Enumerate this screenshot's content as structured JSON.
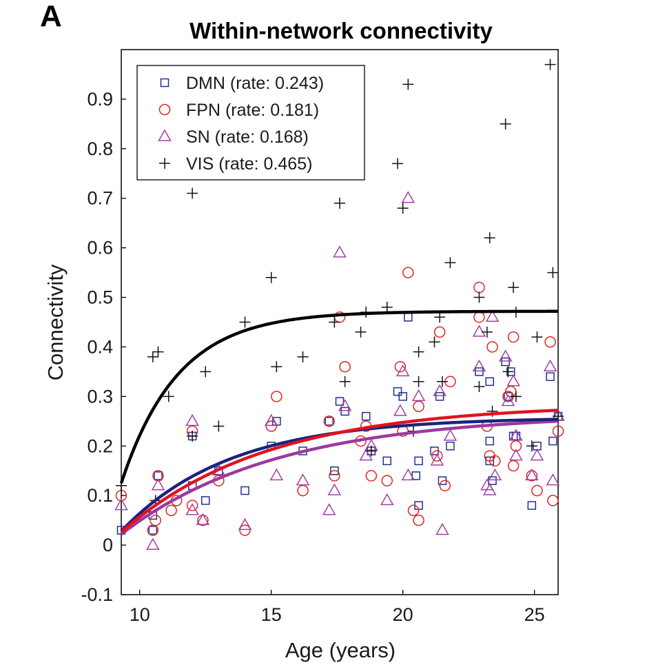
{
  "panel_label": "A",
  "chart_data": {
    "type": "scatter",
    "title": "Within-network connectivity",
    "xlabel": "Age (years)",
    "ylabel": "Connectivity",
    "xlim": [
      9.3,
      25.9
    ],
    "ylim": [
      -0.1,
      1.0
    ],
    "xticks": [
      10,
      15,
      20,
      25
    ],
    "yticks": [
      -0.1,
      0,
      0.1,
      0.2,
      0.3,
      0.4,
      0.5,
      0.6,
      0.7,
      0.8,
      0.9
    ],
    "grid": false,
    "legend_position": "top-left",
    "series": [
      {
        "name": "DMN",
        "legend_label": "DMN  (rate: 0.243)",
        "rate": 0.243,
        "marker": "square",
        "color": "#1f2f8f",
        "fit_color": "#1a237e",
        "fit": {
          "start": 0.028,
          "asymptote": 0.258
        },
        "points": [
          [
            9.3,
            0.03
          ],
          [
            10.5,
            0.03
          ],
          [
            10.5,
            0.06
          ],
          [
            10.7,
            0.14
          ],
          [
            12.0,
            0.22
          ],
          [
            12.0,
            0.12
          ],
          [
            12.5,
            0.09
          ],
          [
            13.0,
            0.15
          ],
          [
            14.0,
            0.11
          ],
          [
            15.0,
            0.2
          ],
          [
            15.2,
            0.25
          ],
          [
            16.2,
            0.19
          ],
          [
            17.2,
            0.25
          ],
          [
            17.4,
            0.15
          ],
          [
            17.6,
            0.29
          ],
          [
            17.8,
            0.27
          ],
          [
            18.6,
            0.26
          ],
          [
            18.8,
            0.19
          ],
          [
            19.4,
            0.17
          ],
          [
            19.8,
            0.31
          ],
          [
            20.0,
            0.3
          ],
          [
            20.2,
            0.46
          ],
          [
            20.5,
            0.14
          ],
          [
            20.6,
            0.08
          ],
          [
            20.6,
            0.17
          ],
          [
            21.2,
            0.19
          ],
          [
            21.4,
            0.3
          ],
          [
            21.5,
            0.13
          ],
          [
            21.8,
            0.2
          ],
          [
            22.9,
            0.35
          ],
          [
            23.3,
            0.33
          ],
          [
            23.3,
            0.21
          ],
          [
            23.3,
            0.17
          ],
          [
            23.4,
            0.13
          ],
          [
            23.9,
            0.37
          ],
          [
            24.0,
            0.3
          ],
          [
            24.1,
            0.35
          ],
          [
            24.2,
            0.22
          ],
          [
            24.3,
            0.22
          ],
          [
            24.9,
            0.08
          ],
          [
            25.1,
            0.2
          ],
          [
            25.6,
            0.34
          ],
          [
            25.7,
            0.21
          ],
          [
            25.9,
            0.26
          ]
        ]
      },
      {
        "name": "FPN",
        "legend_label": "FPN  (rate: 0.181)",
        "rate": 0.181,
        "marker": "circle",
        "color": "#e02424",
        "fit_color": "#e3121b",
        "fit": {
          "start": 0.026,
          "asymptote": 0.285
        },
        "points": [
          [
            9.3,
            0.1
          ],
          [
            10.5,
            0.03
          ],
          [
            10.6,
            0.05
          ],
          [
            10.7,
            0.14
          ],
          [
            11.2,
            0.07
          ],
          [
            11.4,
            0.09
          ],
          [
            12.0,
            0.08
          ],
          [
            12.0,
            0.23
          ],
          [
            12.4,
            0.05
          ],
          [
            13.0,
            0.13
          ],
          [
            14.0,
            0.03
          ],
          [
            15.0,
            0.24
          ],
          [
            15.2,
            0.3
          ],
          [
            16.2,
            0.11
          ],
          [
            17.2,
            0.25
          ],
          [
            17.4,
            0.14
          ],
          [
            17.6,
            0.46
          ],
          [
            17.8,
            0.36
          ],
          [
            18.4,
            0.21
          ],
          [
            18.6,
            0.24
          ],
          [
            18.8,
            0.14
          ],
          [
            19.4,
            0.13
          ],
          [
            19.9,
            0.36
          ],
          [
            20.0,
            0.23
          ],
          [
            20.2,
            0.55
          ],
          [
            20.4,
            0.07
          ],
          [
            20.6,
            0.05
          ],
          [
            20.6,
            0.28
          ],
          [
            21.3,
            0.18
          ],
          [
            21.4,
            0.43
          ],
          [
            21.6,
            0.12
          ],
          [
            21.8,
            0.33
          ],
          [
            22.9,
            0.52
          ],
          [
            22.9,
            0.46
          ],
          [
            23.2,
            0.24
          ],
          [
            23.3,
            0.18
          ],
          [
            23.4,
            0.4
          ],
          [
            23.5,
            0.17
          ],
          [
            24.0,
            0.3
          ],
          [
            24.1,
            0.31
          ],
          [
            24.2,
            0.42
          ],
          [
            24.3,
            0.2
          ],
          [
            24.2,
            0.16
          ],
          [
            24.9,
            0.14
          ],
          [
            25.1,
            0.11
          ],
          [
            25.6,
            0.41
          ],
          [
            25.7,
            0.09
          ],
          [
            25.9,
            0.23
          ]
        ]
      },
      {
        "name": "SN",
        "legend_label": "SN    (rate: 0.168)",
        "rate": 0.168,
        "marker": "triangle",
        "color": "#a13fa3",
        "fit_color": "#9b3a9e",
        "fit": {
          "start": 0.022,
          "asymptote": 0.265
        },
        "points": [
          [
            9.3,
            0.08
          ],
          [
            10.5,
            0.0
          ],
          [
            10.7,
            0.12
          ],
          [
            12.0,
            0.25
          ],
          [
            12.0,
            0.07
          ],
          [
            12.4,
            0.05
          ],
          [
            13.0,
            0.15
          ],
          [
            14.0,
            0.04
          ],
          [
            15.0,
            0.25
          ],
          [
            15.2,
            0.14
          ],
          [
            16.2,
            0.13
          ],
          [
            17.2,
            0.07
          ],
          [
            17.4,
            0.11
          ],
          [
            17.6,
            0.59
          ],
          [
            17.8,
            0.28
          ],
          [
            18.6,
            0.18
          ],
          [
            18.8,
            0.2
          ],
          [
            19.4,
            0.09
          ],
          [
            19.9,
            0.27
          ],
          [
            20.0,
            0.35
          ],
          [
            20.2,
            0.7
          ],
          [
            20.2,
            0.14
          ],
          [
            20.6,
            0.3
          ],
          [
            21.3,
            0.17
          ],
          [
            21.4,
            0.31
          ],
          [
            21.5,
            0.03
          ],
          [
            21.8,
            0.22
          ],
          [
            22.9,
            0.43
          ],
          [
            22.9,
            0.36
          ],
          [
            23.2,
            0.12
          ],
          [
            23.3,
            0.11
          ],
          [
            23.4,
            0.46
          ],
          [
            23.5,
            0.14
          ],
          [
            23.9,
            0.38
          ],
          [
            24.0,
            0.29
          ],
          [
            24.2,
            0.33
          ],
          [
            24.3,
            0.18
          ],
          [
            24.3,
            0.22
          ],
          [
            24.9,
            0.14
          ],
          [
            25.1,
            0.18
          ],
          [
            25.6,
            0.36
          ],
          [
            25.7,
            0.13
          ],
          [
            25.9,
            0.26
          ]
        ]
      },
      {
        "name": "VIS",
        "legend_label": "VIS   (rate: 0.465)",
        "rate": 0.465,
        "marker": "plus",
        "color": "#111111",
        "fit_color": "#000000",
        "fit": {
          "start": 0.125,
          "asymptote": 0.472
        },
        "points": [
          [
            9.3,
            0.12
          ],
          [
            10.5,
            0.38
          ],
          [
            10.6,
            0.09
          ],
          [
            10.7,
            0.39
          ],
          [
            11.1,
            0.3
          ],
          [
            12.0,
            0.71
          ],
          [
            12.0,
            0.22
          ],
          [
            12.5,
            0.35
          ],
          [
            13.0,
            0.24
          ],
          [
            14.0,
            0.45
          ],
          [
            15.0,
            0.54
          ],
          [
            15.2,
            0.36
          ],
          [
            16.2,
            0.38
          ],
          [
            17.4,
            0.45
          ],
          [
            17.6,
            0.69
          ],
          [
            17.8,
            0.33
          ],
          [
            18.4,
            0.43
          ],
          [
            18.6,
            0.47
          ],
          [
            18.8,
            0.19
          ],
          [
            19.4,
            0.48
          ],
          [
            19.8,
            0.77
          ],
          [
            20.0,
            0.68
          ],
          [
            20.2,
            0.93
          ],
          [
            20.4,
            0.23
          ],
          [
            20.6,
            0.39
          ],
          [
            20.6,
            0.33
          ],
          [
            21.2,
            0.41
          ],
          [
            21.4,
            0.46
          ],
          [
            21.5,
            0.33
          ],
          [
            21.8,
            0.57
          ],
          [
            22.9,
            0.5
          ],
          [
            22.9,
            0.32
          ],
          [
            23.2,
            0.43
          ],
          [
            23.3,
            0.62
          ],
          [
            23.4,
            0.27
          ],
          [
            23.9,
            0.85
          ],
          [
            24.0,
            0.35
          ],
          [
            24.2,
            0.52
          ],
          [
            24.3,
            0.47
          ],
          [
            24.3,
            0.3
          ],
          [
            24.9,
            0.2
          ],
          [
            25.1,
            0.42
          ],
          [
            25.6,
            0.97
          ],
          [
            25.7,
            0.55
          ],
          [
            25.9,
            0.26
          ]
        ]
      }
    ]
  }
}
